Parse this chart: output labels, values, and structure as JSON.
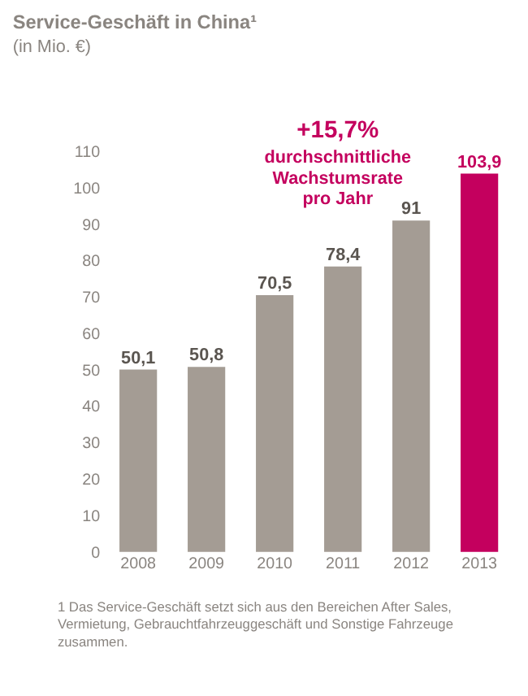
{
  "chart_data": {
    "type": "bar",
    "title": "Service-Geschäft in China¹",
    "subtitle": "(in Mio. €)",
    "categories": [
      "2008",
      "2009",
      "2010",
      "2011",
      "2012",
      "2013"
    ],
    "values": [
      50.1,
      50.8,
      70.5,
      78.4,
      91,
      103.9
    ],
    "value_labels": [
      "50,1",
      "50,8",
      "70,5",
      "78,4",
      "91",
      "103,9"
    ],
    "colors": [
      "#a49c94",
      "#a49c94",
      "#a49c94",
      "#a49c94",
      "#a49c94",
      "#c4005e"
    ],
    "ylim": [
      0,
      110
    ],
    "yticks": [
      0,
      10,
      20,
      30,
      40,
      50,
      60,
      70,
      80,
      90,
      100,
      110
    ],
    "grid": false,
    "legend": false,
    "annotations": [
      "+15,7%",
      "durchschnittliche Wachstumsrate pro Jahr",
      "1 Das Service-Geschäft setzt sich aus den Bereichen After Sales, Vermietung, Gebrauchtfahrzeuggeschäft und Sonstige Fahrzeuge zusammen."
    ]
  }
}
